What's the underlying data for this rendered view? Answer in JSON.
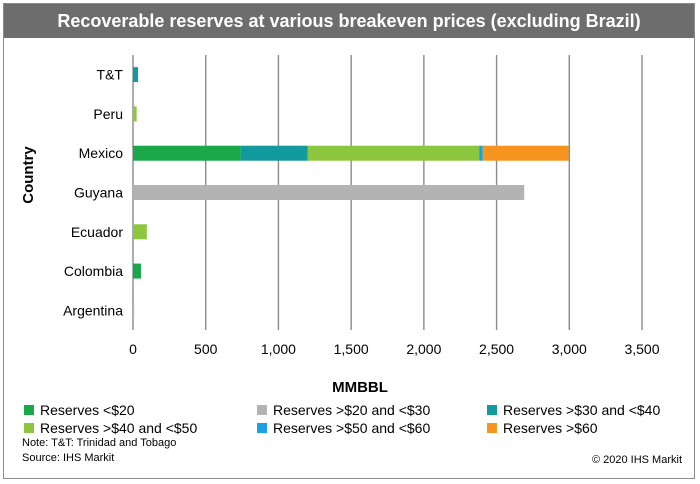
{
  "chart_data": {
    "type": "bar",
    "orientation": "horizontal",
    "stacked": true,
    "title": "Recoverable reserves at various breakeven prices (excluding Brazil)",
    "xlabel": "MMBBL",
    "ylabel": "Country",
    "xlim": [
      0,
      3500
    ],
    "xticks": [
      0,
      500,
      1000,
      1500,
      2000,
      2500,
      3000,
      3500
    ],
    "xtick_labels": [
      "0",
      "500",
      "1,000",
      "1,500",
      "2,000",
      "2,500",
      "3,000",
      "3,500"
    ],
    "grid": "vertical",
    "legend_position": "bottom",
    "categories": [
      "T&T",
      "Peru",
      "Mexico",
      "Guyana",
      "Ecuador",
      "Colombia",
      "Argentina"
    ],
    "series": [
      {
        "name": "Reserves <$20",
        "color": "#1aa84b",
        "values": [
          0,
          0,
          740,
          0,
          0,
          55,
          0
        ]
      },
      {
        "name": "Reserves >$20 and <$30",
        "color": "#b3b3b3",
        "values": [
          0,
          0,
          0,
          2690,
          0,
          0,
          8
        ]
      },
      {
        "name": "Reserves >$30 and <$40",
        "color": "#129a9e",
        "values": [
          35,
          0,
          460,
          0,
          0,
          0,
          0
        ]
      },
      {
        "name": "Reserves >$40 and <$50",
        "color": "#8dc63f",
        "values": [
          0,
          25,
          1180,
          0,
          95,
          0,
          0
        ]
      },
      {
        "name": "Reserves >$50 and <$60",
        "color": "#1ba1e2",
        "values": [
          0,
          0,
          25,
          0,
          0,
          0,
          0
        ]
      },
      {
        "name": "Reserves >$60",
        "color": "#f7941d",
        "values": [
          0,
          0,
          590,
          0,
          0,
          0,
          0
        ]
      }
    ]
  },
  "notes": {
    "note": "Note: T&T: Trinidad and Tobago",
    "source": "Source: IHS Markit",
    "copyright": "© 2020 IHS Markit"
  }
}
